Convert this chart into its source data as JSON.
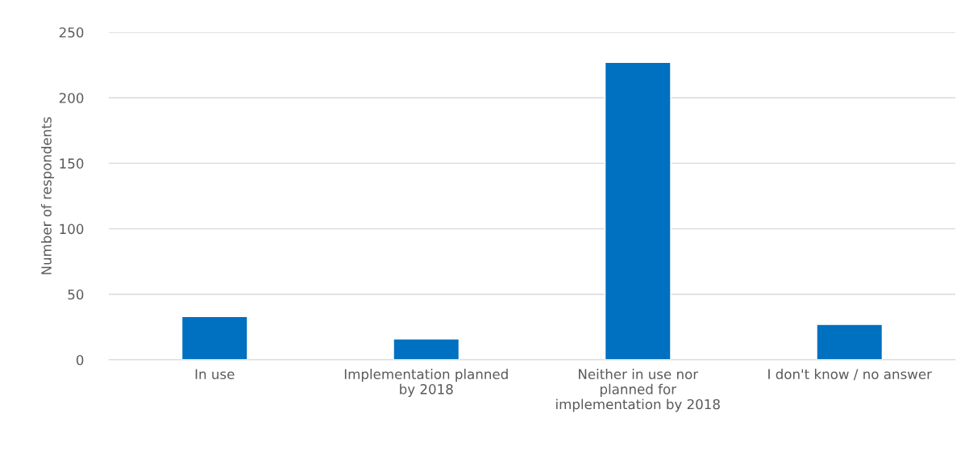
{
  "chart_data": {
    "type": "bar",
    "ylabel": "Number of respondents",
    "categories": [
      "In use",
      "Implementation planned\nby 2018",
      "Neither in use nor\nplanned for\nimplementation by 2018",
      "I don't know / no answer"
    ],
    "values": [
      33,
      16,
      227,
      27
    ],
    "color": "#0070c0",
    "ylim": [
      0,
      250
    ],
    "yticks": [
      0,
      50,
      100,
      150,
      200,
      250
    ],
    "grid": "y",
    "legend": false
  }
}
